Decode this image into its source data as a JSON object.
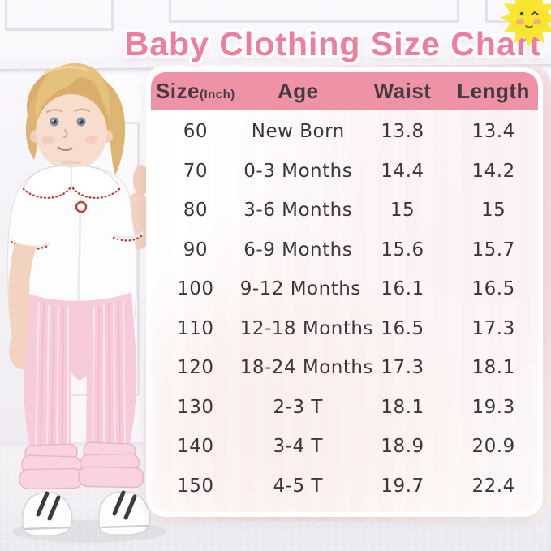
{
  "chart_data": {
    "type": "table",
    "title": "Baby Clothing Size Chart",
    "columns": [
      {
        "key": "size",
        "label": "Size",
        "sub": "(Inch)"
      },
      {
        "key": "age",
        "label": "Age",
        "sub": ""
      },
      {
        "key": "waist",
        "label": "Waist",
        "sub": ""
      },
      {
        "key": "length",
        "label": "Length",
        "sub": ""
      }
    ],
    "rows": [
      [
        "60",
        "New Born",
        "13.8",
        "13.4"
      ],
      [
        "70",
        "0-3 Months",
        "14.4",
        "14.2"
      ],
      [
        "80",
        "3-6 Months",
        "15",
        "15"
      ],
      [
        "90",
        "6-9 Months",
        "15.6",
        "15.7"
      ],
      [
        "100",
        "9-12 Months",
        "16.1",
        "16.5"
      ],
      [
        "110",
        "12-18 Months",
        "16.5",
        "17.3"
      ],
      [
        "120",
        "18-24 Months",
        "17.3",
        "18.1"
      ],
      [
        "130",
        "2-3 T",
        "18.1",
        "19.3"
      ],
      [
        "140",
        "3-4 T",
        "18.9",
        "20.9"
      ],
      [
        "150",
        "4-5 T",
        "19.7",
        "22.4"
      ]
    ],
    "units": "inches",
    "layout": {
      "header_position": "top",
      "grid": false
    }
  },
  "icons": {
    "sun": "winking-sun"
  },
  "colors": {
    "title_pink": "#ee7e9d",
    "header_pink": "#ee92a6",
    "table_text": "#3e353a",
    "card_border": "#ffffff",
    "sun_yellow": "#f8e52f",
    "pants_pink": "#f8cbd8",
    "trim_red": "#bf3a30"
  }
}
